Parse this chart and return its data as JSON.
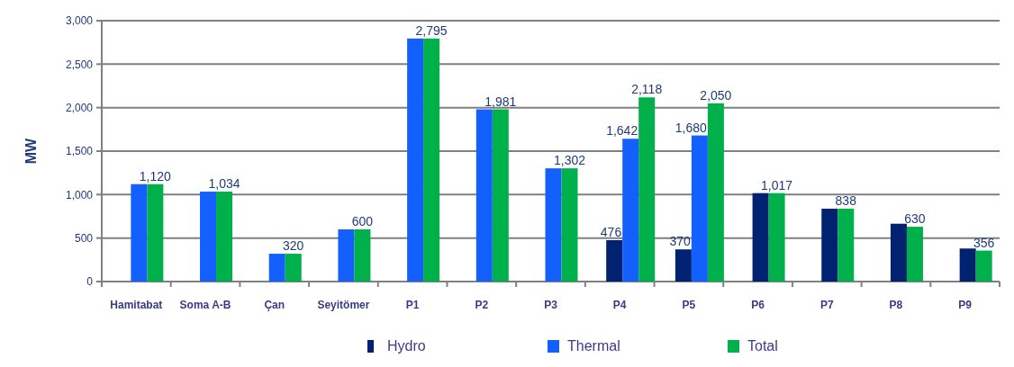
{
  "chart_data": {
    "type": "bar",
    "ylabel": "MW",
    "categories": [
      "Hamitabat",
      "Soma A-B",
      "Çan",
      "Seyitömer",
      "P1",
      "P2",
      "P3",
      "P4",
      "P5",
      "P6",
      "P7",
      "P8",
      "P9"
    ],
    "series": [
      {
        "name": "Hydro",
        "color": "#002270",
        "values": [
          null,
          null,
          null,
          null,
          null,
          null,
          null,
          476,
          370,
          1017,
          838,
          665,
          380
        ],
        "value_labels": [
          null,
          null,
          null,
          null,
          null,
          null,
          null,
          "476",
          "370",
          null,
          null,
          null,
          null
        ]
      },
      {
        "name": "Thermal",
        "color": "#1460ff",
        "values": [
          1120,
          1034,
          320,
          600,
          2795,
          1981,
          1302,
          1642,
          1680,
          null,
          null,
          null,
          null
        ],
        "value_labels": [
          null,
          null,
          null,
          null,
          null,
          null,
          null,
          "1,642",
          "1,680",
          null,
          null,
          null,
          null
        ]
      },
      {
        "name": "Total",
        "color": "#00b04a",
        "values": [
          1120,
          1034,
          320,
          600,
          2795,
          1981,
          1302,
          2118,
          2050,
          1017,
          838,
          630,
          356
        ],
        "value_labels": [
          "1,120",
          "1,034",
          "320",
          "600",
          "2,795",
          "1,981",
          "1,302",
          "2,118",
          "2,050",
          "1,017",
          "838",
          "630",
          "356"
        ]
      }
    ],
    "ylim": [
      0,
      3000
    ],
    "yticks": [
      {
        "value": 0,
        "label": "0"
      },
      {
        "value": 500,
        "label": "500"
      },
      {
        "value": 1000,
        "label": "1,000"
      },
      {
        "value": 1500,
        "label": "1,500"
      },
      {
        "value": 2000,
        "label": "2,000"
      },
      {
        "value": 2500,
        "label": "2,500"
      },
      {
        "value": 3000,
        "label": "3,000"
      }
    ],
    "grid": "y",
    "legend": "bottom"
  }
}
